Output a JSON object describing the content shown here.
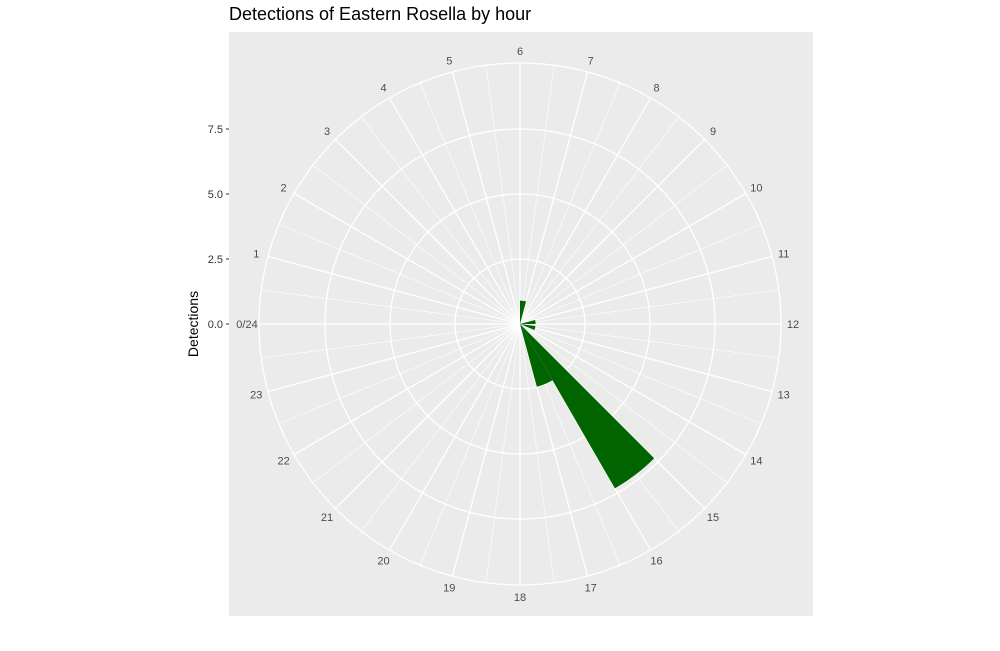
{
  "chart_data": {
    "type": "bar",
    "coordinate_system": "polar",
    "title": "Detections of Eastern Rosella by hour",
    "ylabel": "Detections",
    "xlabel": "",
    "categories": [
      "0/24",
      "1",
      "2",
      "3",
      "4",
      "5",
      "6",
      "7",
      "8",
      "9",
      "10",
      "11",
      "12",
      "13",
      "14",
      "15",
      "16",
      "17",
      "18",
      "19",
      "20",
      "21",
      "22",
      "23"
    ],
    "values": [
      0,
      0,
      0,
      0,
      0,
      0,
      0.9,
      0,
      0,
      0,
      0,
      0.6,
      0,
      0.6,
      0,
      7.3,
      2.5,
      0,
      0,
      0,
      0,
      0,
      0,
      0
    ],
    "bars": [
      {
        "hour": 6.5,
        "value": 0.9
      },
      {
        "hour": 11.5,
        "value": 0.6
      },
      {
        "hour": 13,
        "value": 0.6
      },
      {
        "hour": 15.5,
        "value": 7.3
      },
      {
        "hour": 16.5,
        "value": 2.5
      }
    ],
    "y_ticks": [
      "0.0",
      "2.5",
      "5.0",
      "7.5"
    ],
    "y_tick_values": [
      0,
      2.5,
      5,
      7.5
    ],
    "ylim": [
      0,
      10
    ],
    "bar_color": "#006400",
    "panel_color": "#ebebeb",
    "grid": true
  }
}
